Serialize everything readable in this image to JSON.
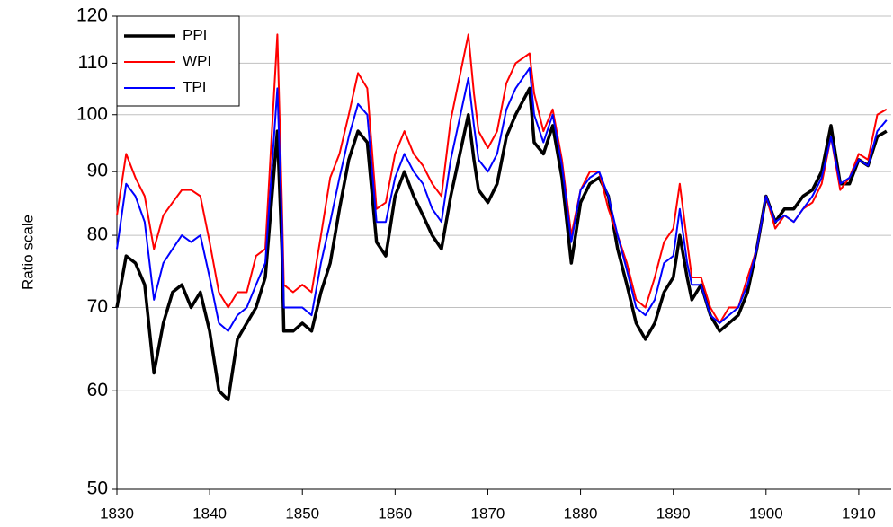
{
  "chart_data": {
    "type": "line",
    "y_label": "Ratio scale",
    "yscale": "log",
    "grid": true,
    "legend": "upper left",
    "x": [
      1830,
      1831,
      1832,
      1833,
      1834,
      1835,
      1836,
      1837,
      1838,
      1839,
      1840,
      1841,
      1842,
      1843,
      1844,
      1845,
      1846,
      1847.3,
      1847.8,
      1848,
      1849,
      1850,
      1851,
      1852,
      1853,
      1854,
      1855,
      1856,
      1857,
      1858,
      1859,
      1860,
      1861,
      1862,
      1863,
      1864,
      1865,
      1866,
      1867.9,
      1868.5,
      1869,
      1870,
      1871,
      1872,
      1873,
      1874.5,
      1875,
      1876,
      1877,
      1878,
      1879,
      1880,
      1881,
      1882,
      1883,
      1884,
      1885,
      1886,
      1887,
      1888,
      1889,
      1890,
      1890.7,
      1891.5,
      1892,
      1893,
      1894,
      1895,
      1896,
      1897,
      1898,
      1899,
      1900,
      1901,
      1902,
      1903,
      1904,
      1905,
      1906,
      1907,
      1908,
      1909,
      1910,
      1911,
      1912,
      1913
    ],
    "series": [
      {
        "name": "PPI",
        "color": "#000000",
        "values": [
          70,
          77,
          76,
          73,
          62,
          68,
          72,
          73,
          70,
          72,
          67,
          60,
          59,
          66,
          68,
          70,
          74,
          97,
          78,
          67,
          67,
          68,
          67,
          72,
          76,
          84,
          92,
          97,
          95,
          79,
          77,
          86,
          90,
          86,
          83,
          80,
          78,
          86,
          100,
          92,
          87,
          85,
          88,
          96,
          100,
          105,
          95,
          93,
          98,
          89,
          76,
          85,
          88,
          89,
          86,
          78,
          73,
          68,
          66,
          68,
          72,
          74,
          80,
          74,
          71,
          73,
          69,
          67,
          68,
          69,
          72,
          78,
          86,
          82,
          84,
          84,
          86,
          87,
          90,
          98,
          88,
          88,
          92,
          91,
          96,
          97
        ]
      },
      {
        "name": "WPI",
        "color": "#ff0000",
        "values": [
          83,
          93,
          89,
          86,
          78,
          83,
          85,
          87,
          87,
          86,
          79,
          72,
          70,
          72,
          72,
          77,
          78,
          116,
          85,
          73,
          72,
          73,
          72,
          80,
          89,
          93,
          100,
          108,
          105,
          84,
          85,
          93,
          97,
          93,
          91,
          88,
          86,
          99,
          116,
          104,
          97,
          94,
          97,
          106,
          110,
          112,
          104,
          97,
          101,
          92,
          80,
          87,
          90,
          90,
          84,
          80,
          76,
          71,
          70,
          74,
          79,
          81,
          88,
          79,
          74,
          74,
          70,
          68,
          70,
          70,
          74,
          78,
          86,
          81,
          83,
          82,
          84,
          85,
          88,
          96,
          87,
          89,
          93,
          92,
          100,
          101
        ]
      },
      {
        "name": "TPI",
        "color": "#0000ff",
        "values": [
          78,
          88,
          86,
          82,
          71,
          76,
          78,
          80,
          79,
          80,
          74,
          68,
          67,
          69,
          70,
          73,
          76,
          105,
          82,
          70,
          70,
          70,
          69,
          76,
          82,
          89,
          96,
          102,
          100,
          82,
          82,
          89,
          93,
          90,
          88,
          84,
          82,
          92,
          107,
          98,
          92,
          90,
          93,
          101,
          105,
          109,
          100,
          95,
          100,
          91,
          79,
          87,
          89,
          90,
          86,
          80,
          75,
          70,
          69,
          71,
          76,
          77,
          84,
          76,
          73,
          73,
          69,
          68,
          69,
          70,
          73,
          78,
          86,
          82,
          83,
          82,
          84,
          86,
          89,
          96,
          88,
          89,
          92,
          91,
          97,
          99
        ]
      }
    ],
    "xlim": [
      1830,
      1913.5
    ],
    "xticks": [
      1830,
      1840,
      1850,
      1860,
      1870,
      1880,
      1890,
      1900,
      1910
    ],
    "ylim": [
      50,
      120
    ],
    "yticks": [
      50,
      60,
      70,
      80,
      90,
      100,
      110,
      120
    ]
  }
}
